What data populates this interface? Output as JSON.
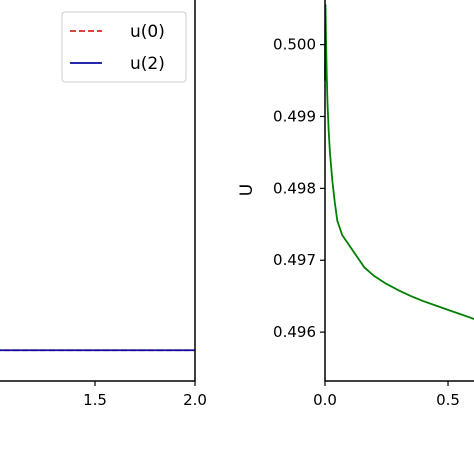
{
  "chart_data": [
    {
      "type": "line",
      "title": "",
      "xlabel": "",
      "ylabel": "",
      "xlim": [
        1.0,
        2.0
      ],
      "ylim": [
        0.4953,
        0.5007
      ],
      "xticks": [
        {
          "value": 1.5,
          "label": "1.5"
        },
        {
          "value": 2.0,
          "label": "2.0"
        }
      ],
      "grid": false,
      "legend": {
        "placement": "top-right",
        "entries": [
          {
            "label": "u(0)",
            "color": "#d62728",
            "style": "dashed"
          },
          {
            "label": "u(2)",
            "color": "#0a0a9e",
            "style": "solid"
          }
        ]
      },
      "series": [
        {
          "name": "u(0)",
          "color": "#d62728",
          "style": "dashed",
          "x": [
            1.0,
            2.0
          ],
          "y": [
            0.49573,
            0.49573
          ]
        },
        {
          "name": "u(2)",
          "color": "#0a0a9e",
          "style": "solid",
          "x": [
            1.0,
            2.0
          ],
          "y": [
            0.49573,
            0.49573
          ]
        }
      ]
    },
    {
      "type": "line",
      "title": "",
      "xlabel": "",
      "ylabel": "U",
      "xlim": [
        0.0,
        0.63
      ],
      "ylim": [
        0.49532,
        0.50069
      ],
      "xticks": [
        {
          "value": 0.0,
          "label": "0.0"
        },
        {
          "value": 0.5,
          "label": "0.5"
        }
      ],
      "yticks": [
        {
          "value": 0.496,
          "label": "0.496"
        },
        {
          "value": 0.497,
          "label": "0.497"
        },
        {
          "value": 0.498,
          "label": "0.498"
        },
        {
          "value": 0.499,
          "label": "0.499"
        },
        {
          "value": 0.5,
          "label": "0.500"
        }
      ],
      "grid": false,
      "series": [
        {
          "color": "#008000",
          "x": [
            0.0,
            0.002,
            0.004,
            0.007,
            0.01,
            0.015,
            0.02,
            0.03,
            0.04,
            0.05,
            0.07,
            0.1,
            0.13,
            0.16,
            0.2,
            0.25,
            0.3,
            0.35,
            0.4,
            0.45,
            0.5,
            0.55,
            0.6,
            0.63
          ],
          "y": [
            0.4995,
            0.50055,
            0.5001,
            0.4996,
            0.4992,
            0.4988,
            0.4985,
            0.4981,
            0.4978,
            0.49755,
            0.49735,
            0.4972,
            0.49705,
            0.4969,
            0.49678,
            0.49667,
            0.49658,
            0.4965,
            0.49643,
            0.49637,
            0.49631,
            0.49625,
            0.49619,
            0.49614
          ]
        }
      ]
    }
  ]
}
